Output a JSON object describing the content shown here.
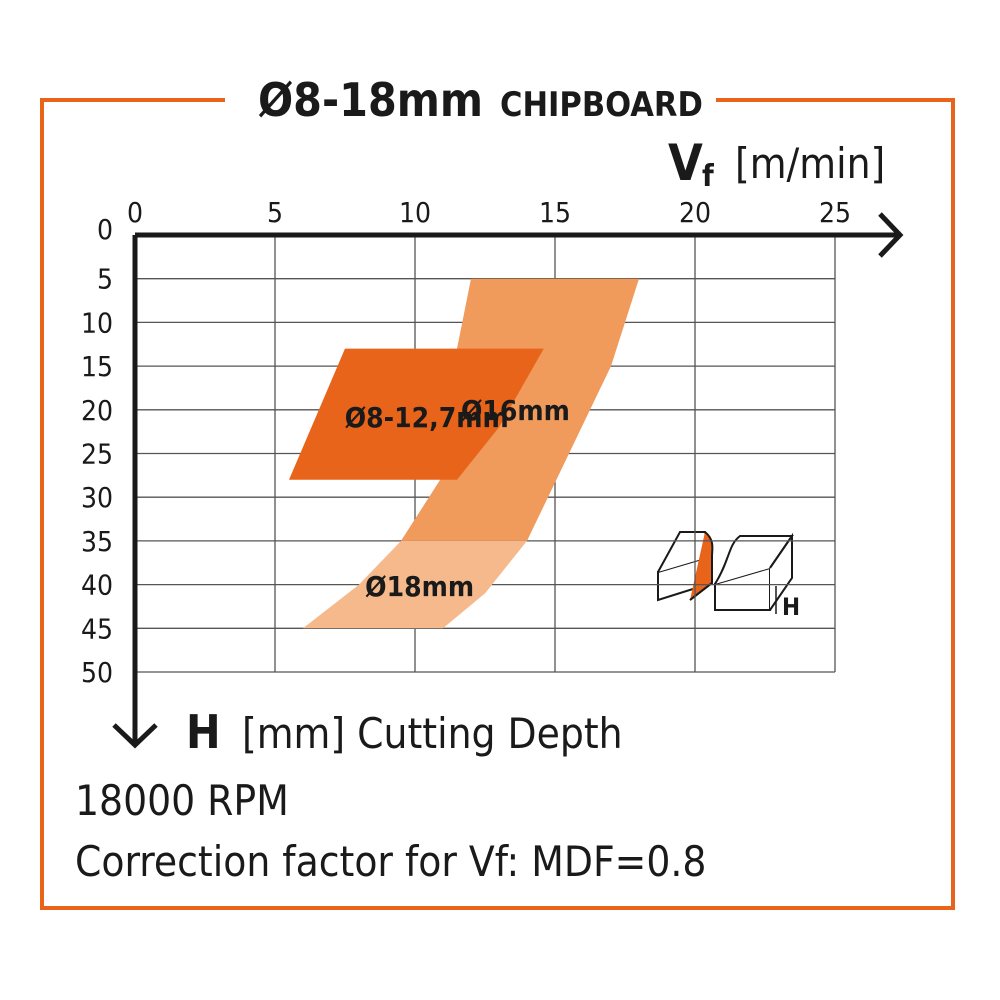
{
  "chart_data": {
    "type": "area",
    "title": "Ø8-18mm",
    "subtitle": "CHIPBOARD",
    "x_label_symbol": "V",
    "x_label_subscript": "f",
    "x_label_unit": "[m/min]",
    "y_label_symbol": "H",
    "y_label_text": "[mm] Cutting Depth",
    "xlim": [
      0,
      25
    ],
    "xticks": [
      0,
      5,
      10,
      15,
      20,
      25
    ],
    "ylim": [
      0,
      50
    ],
    "yticks": [
      0,
      5,
      10,
      15,
      20,
      25,
      30,
      35,
      40,
      45,
      50
    ],
    "grid": true,
    "series": [
      {
        "name": "Ø18mm",
        "color": "#f6b98c",
        "x": [
          9.5,
          14,
          12.5,
          11,
          6,
          8
        ],
        "y": [
          35,
          35,
          41,
          45,
          45,
          40
        ]
      },
      {
        "name": "Ø16mm",
        "color": "#f09a5c",
        "x": [
          12,
          18,
          17,
          15.2,
          14,
          9.5,
          11.5,
          11.5
        ],
        "y": [
          5,
          5,
          15,
          27,
          35,
          35,
          25,
          13
        ]
      },
      {
        "name": "Ø8-12,7mm",
        "color": "#e8641b",
        "x": [
          7.5,
          14.6,
          13,
          11.5,
          5.5
        ],
        "y": [
          13,
          13,
          22,
          28,
          28
        ]
      }
    ],
    "depth_symbol": "H",
    "notes": [
      "18000 RPM",
      "Correction factor for Vf: MDF=0.8"
    ]
  }
}
